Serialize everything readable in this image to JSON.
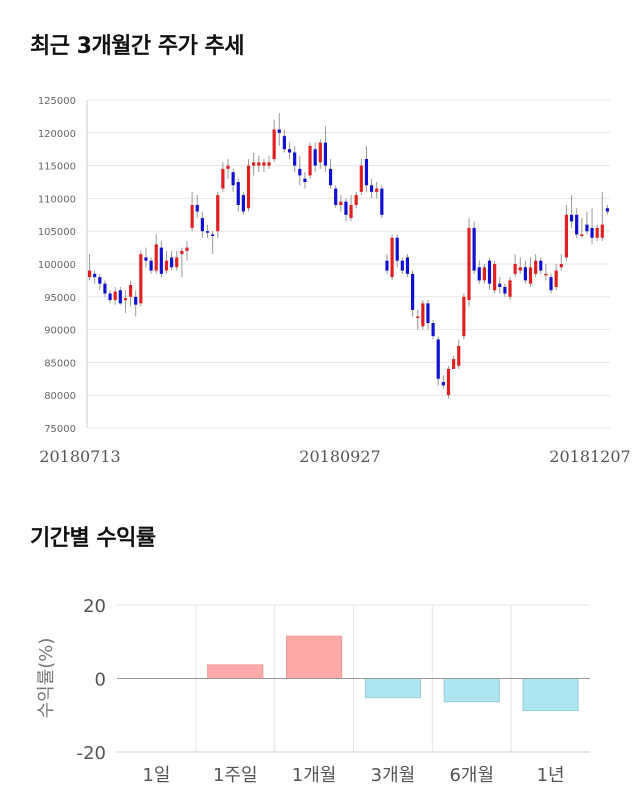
{
  "sections": {
    "price_title": "최근 3개월간 주가 추세",
    "returns_title": "기간별 수익률"
  },
  "chart_data": [
    {
      "type": "candlestick",
      "title": "최근 3개월간 주가 추세",
      "ylim": [
        75000,
        125000
      ],
      "y_ticks": [
        75000,
        80000,
        85000,
        90000,
        95000,
        100000,
        105000,
        110000,
        115000,
        120000,
        125000
      ],
      "x_tick_labels": [
        "20180713",
        "20180927",
        "20181207"
      ],
      "grid": true,
      "colors": {
        "up": "#e02020",
        "down": "#1010d0",
        "wick": "#999999",
        "grid": "#e6e6e6"
      },
      "candles": [
        [
          98000,
          99000,
          97500,
          101500
        ],
        [
          98500,
          98000,
          97000,
          99000
        ],
        [
          98000,
          97000,
          96000,
          98500
        ],
        [
          97000,
          95500,
          95000,
          97500
        ],
        [
          95500,
          94500,
          94000,
          96000
        ],
        [
          94500,
          95800,
          93800,
          96500
        ],
        [
          96000,
          94000,
          93800,
          96500
        ],
        [
          94500,
          94800,
          92500,
          96000
        ],
        [
          95000,
          96800,
          93500,
          97500
        ],
        [
          95000,
          93800,
          92000,
          96000
        ],
        [
          94000,
          101500,
          93500,
          102000
        ],
        [
          101000,
          100500,
          99500,
          102500
        ],
        [
          100500,
          99000,
          98500,
          101000
        ],
        [
          99000,
          103000,
          98500,
          104500
        ],
        [
          102500,
          98500,
          98000,
          103500
        ],
        [
          99000,
          100500,
          98500,
          102000
        ],
        [
          101000,
          99500,
          99000,
          102000
        ],
        [
          99500,
          101000,
          99000,
          102000
        ],
        [
          101500,
          102000,
          98000,
          102500
        ],
        [
          102000,
          102500,
          100500,
          103500
        ],
        [
          105500,
          109000,
          105000,
          111000
        ],
        [
          109000,
          108000,
          107000,
          110500
        ],
        [
          107000,
          105000,
          104000,
          108000
        ],
        [
          105000,
          104800,
          104000,
          106000
        ],
        [
          104500,
          104300,
          101500,
          105000
        ],
        [
          105000,
          110500,
          104000,
          111000
        ],
        [
          111500,
          114500,
          111000,
          115500
        ],
        [
          114500,
          115000,
          113000,
          116000
        ],
        [
          114000,
          112000,
          111000,
          114500
        ],
        [
          112500,
          109000,
          108000,
          113000
        ],
        [
          110500,
          108000,
          107500,
          111000
        ],
        [
          108500,
          115000,
          108000,
          116000
        ],
        [
          115000,
          115500,
          113500,
          117000
        ],
        [
          115000,
          115500,
          114000,
          116500
        ],
        [
          115000,
          115500,
          114000,
          116000
        ],
        [
          115000,
          115500,
          114500,
          116500
        ],
        [
          116000,
          120500,
          115500,
          122000
        ],
        [
          120500,
          120000,
          118000,
          123000
        ],
        [
          119500,
          117500,
          117000,
          120500
        ],
        [
          117500,
          117000,
          116000,
          118500
        ],
        [
          117000,
          115000,
          114000,
          118000
        ],
        [
          114500,
          113500,
          112000,
          116500
        ],
        [
          113000,
          112500,
          111500,
          114000
        ],
        [
          113500,
          118000,
          113000,
          118500
        ],
        [
          117500,
          115000,
          114000,
          118500
        ],
        [
          115500,
          118500,
          114500,
          119000
        ],
        [
          118500,
          115000,
          114000,
          121000
        ],
        [
          114500,
          112000,
          111500,
          116000
        ],
        [
          111500,
          109000,
          108500,
          112000
        ],
        [
          109000,
          109500,
          108000,
          110500
        ],
        [
          109500,
          107500,
          106500,
          110000
        ],
        [
          107000,
          109000,
          106500,
          110500
        ],
        [
          109000,
          110500,
          108500,
          111000
        ],
        [
          111000,
          115000,
          110500,
          116000
        ],
        [
          116000,
          112000,
          111000,
          118000
        ],
        [
          112000,
          111000,
          110000,
          113000
        ],
        [
          111000,
          111500,
          110000,
          112500
        ],
        [
          111500,
          107500,
          107000,
          112000
        ],
        [
          100500,
          99000,
          98500,
          101500
        ],
        [
          98000,
          104000,
          97500,
          104500
        ],
        [
          104000,
          100500,
          99500,
          104500
        ],
        [
          100500,
          99000,
          98500,
          101000
        ],
        [
          101000,
          98500,
          98000,
          101500
        ],
        [
          98500,
          93000,
          92000,
          99000
        ],
        [
          92000,
          92000,
          90000,
          93000
        ],
        [
          90500,
          94000,
          90000,
          94500
        ],
        [
          94000,
          91000,
          90000,
          94500
        ],
        [
          91000,
          89000,
          88500,
          91500
        ],
        [
          88500,
          82500,
          81500,
          89000
        ],
        [
          82000,
          81500,
          81000,
          83000
        ],
        [
          80000,
          84000,
          79500,
          84500
        ],
        [
          84000,
          85500,
          84000,
          86000
        ],
        [
          84500,
          87500,
          84000,
          88500
        ],
        [
          89000,
          95000,
          88500,
          95500
        ],
        [
          94500,
          105500,
          93500,
          107000
        ],
        [
          105500,
          99000,
          98500,
          106500
        ],
        [
          99500,
          97500,
          97000,
          100500
        ],
        [
          97500,
          99500,
          97000,
          100000
        ],
        [
          100500,
          97000,
          96000,
          101000
        ],
        [
          96000,
          100000,
          95500,
          100500
        ],
        [
          97000,
          96500,
          95500,
          98000
        ],
        [
          96500,
          95500,
          95000,
          97000
        ],
        [
          95000,
          97500,
          94500,
          98000
        ],
        [
          98500,
          100000,
          98000,
          101500
        ],
        [
          99000,
          99500,
          98500,
          101000
        ],
        [
          99500,
          97500,
          97000,
          100500
        ],
        [
          97000,
          99500,
          96500,
          101000
        ],
        [
          98500,
          100500,
          98000,
          101500
        ],
        [
          100500,
          99000,
          98500,
          101000
        ],
        [
          98500,
          98500,
          97500,
          100000
        ],
        [
          98000,
          96000,
          95500,
          98500
        ],
        [
          96500,
          99000,
          96000,
          100000
        ],
        [
          99500,
          100000,
          99000,
          101500
        ],
        [
          101000,
          107500,
          100500,
          109000
        ],
        [
          107500,
          106500,
          105500,
          110500
        ],
        [
          107500,
          104500,
          104000,
          108500
        ],
        [
          104500,
          104500,
          104000,
          107000
        ],
        [
          106000,
          105000,
          104500,
          108000
        ],
        [
          105500,
          104000,
          103000,
          108500
        ],
        [
          104000,
          105500,
          103500,
          106000
        ],
        [
          104000,
          106000,
          103500,
          111000
        ],
        [
          108500,
          108000,
          107500,
          109000
        ]
      ]
    },
    {
      "type": "bar",
      "categories": [
        "1일",
        "1주일",
        "1개월",
        "3개월",
        "6개월",
        "1년"
      ],
      "values": [
        0,
        3.7,
        11.5,
        -5.2,
        -6.3,
        -8.7
      ],
      "ylabel": "수익률(%)",
      "ylim": [
        -20,
        20
      ],
      "y_ticks": [
        20,
        0,
        -20
      ],
      "colors": {
        "positive": "#ffaaaa",
        "positive_edge": "#ee9999",
        "negative": "#aee6f0",
        "negative_edge": "#99cdda",
        "grid": "#e6e6e6"
      }
    }
  ]
}
